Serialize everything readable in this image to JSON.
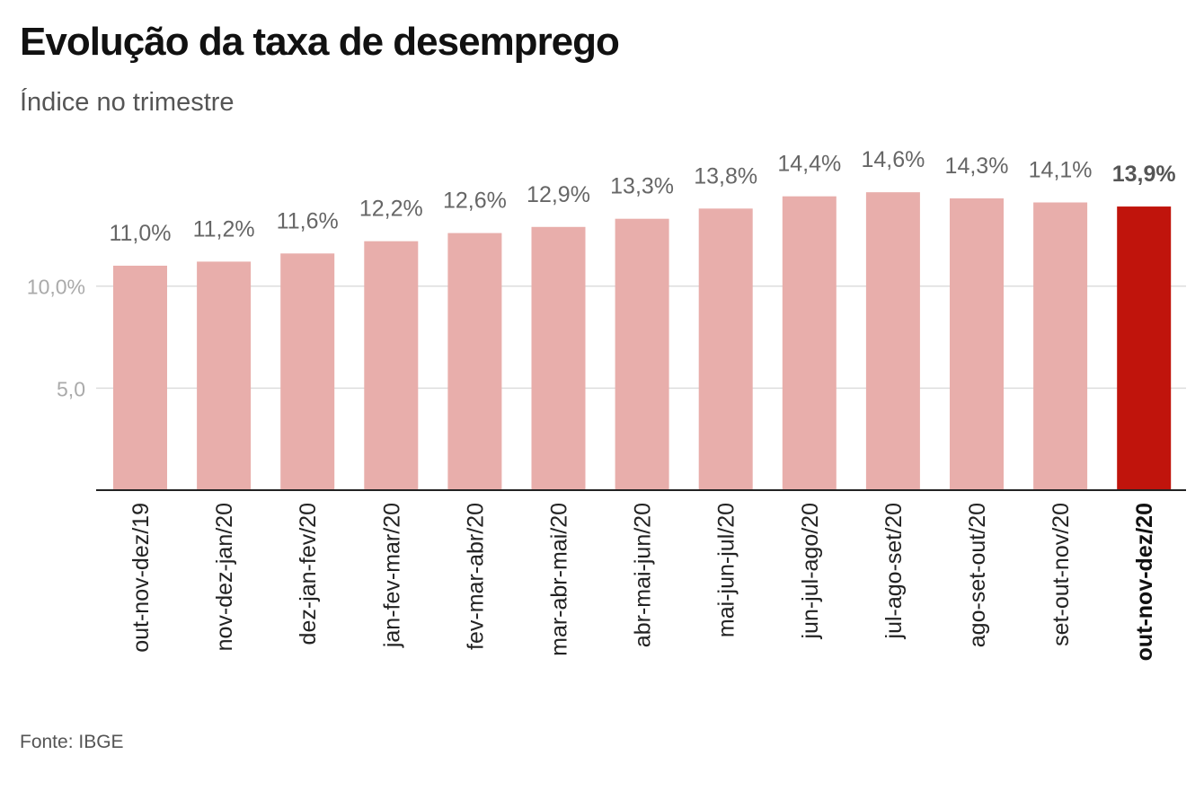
{
  "header": {
    "title": "Evolução da taxa de desemprego",
    "subtitle": "Índice no trimestre"
  },
  "footer": {
    "source": "Fonte: IBGE"
  },
  "colors": {
    "bar": "#e8aeab",
    "bar_highlight": "#c0140c",
    "grid": "#dddddd",
    "axis": "#222222"
  },
  "chart_data": {
    "type": "bar",
    "title": "Evolução da taxa de desemprego",
    "subtitle": "Índice no trimestre",
    "categories": [
      "out-nov-dez/19",
      "nov-dez-jan/20",
      "dez-jan-fev/20",
      "jan-fev-mar/20",
      "fev-mar-abr/20",
      "mar-abr-mai/20",
      "abr-mai-jun/20",
      "mai-jun-jul/20",
      "jun-jul-ago/20",
      "jul-ago-set/20",
      "ago-set-out/20",
      "set-out-nov/20",
      "out-nov-dez/20"
    ],
    "values": [
      11.0,
      11.2,
      11.6,
      12.2,
      12.6,
      12.9,
      13.3,
      13.8,
      14.4,
      14.6,
      14.3,
      14.1,
      13.9
    ],
    "value_labels": [
      "11,0%",
      "11,2%",
      "11,6%",
      "12,2%",
      "12,6%",
      "12,9%",
      "13,3%",
      "13,8%",
      "14,4%",
      "14,6%",
      "14,3%",
      "14,1%",
      "13,9%"
    ],
    "highlight_index": 12,
    "y_ticks": [
      {
        "value": 5,
        "label": "5,0"
      },
      {
        "value": 10,
        "label": "10,0%"
      }
    ],
    "ylim": [
      0,
      15
    ],
    "grid": true,
    "legend": "none"
  }
}
